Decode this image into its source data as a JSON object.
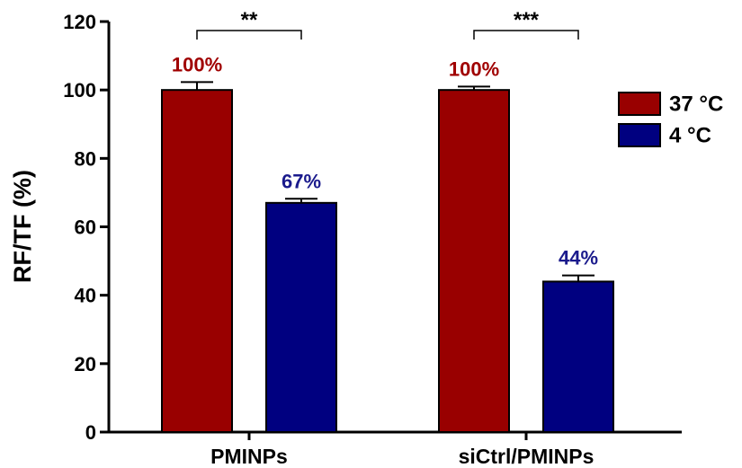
{
  "chart_data": {
    "type": "bar",
    "title": "",
    "xlabel": "",
    "ylabel": "RF/TF (%)",
    "ylim": [
      0,
      120
    ],
    "yticks": [
      0,
      20,
      40,
      60,
      80,
      100,
      120
    ],
    "categories": [
      "PMINPs",
      "siCtrl/PMINPs"
    ],
    "series": [
      {
        "name": "37 °C",
        "color": "#990000",
        "values": [
          100,
          100
        ],
        "errors": [
          2.3,
          1.0
        ],
        "value_labels": [
          "100%",
          "100%"
        ],
        "label_color": "#a00000"
      },
      {
        "name": "4 °C",
        "color": "#000080",
        "values": [
          67,
          44
        ],
        "errors": [
          1.2,
          1.8
        ],
        "value_labels": [
          "67%",
          "44%"
        ],
        "label_color": "#1a1a8c"
      }
    ],
    "significance": [
      "**",
      "***"
    ],
    "legend": {
      "position": "right"
    },
    "grid": false
  }
}
